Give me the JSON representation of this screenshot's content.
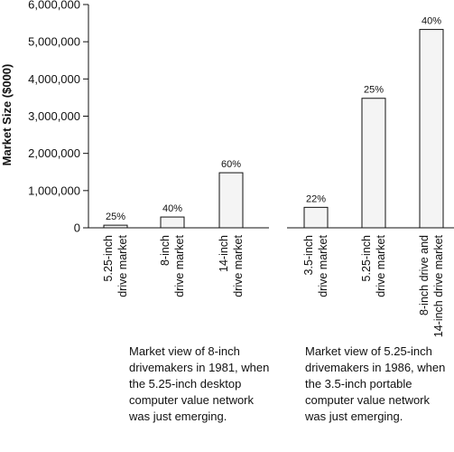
{
  "chart_data": {
    "type": "bar",
    "title": "",
    "xlabel": "",
    "ylabel": "Market Size ($000)",
    "ylim": [
      0,
      6000000
    ],
    "yticks": [
      "0",
      "1,000,000",
      "2,000,000",
      "3,000,000",
      "4,000,000",
      "5,000,000",
      "6,000,000"
    ],
    "grid": false,
    "groups": [
      {
        "categories": [
          [
            "5.25-inch",
            "drive market"
          ],
          [
            "8-inch",
            "drive market"
          ],
          [
            "14-inch",
            "drive market"
          ]
        ],
        "values": [
          70000,
          290000,
          1480000
        ],
        "labels": [
          "25%",
          "40%",
          "60%"
        ],
        "caption": [
          "Market view of 8-inch",
          "drivemakers in 1981, when",
          "the 5.25-inch desktop",
          "computer value network",
          "was just emerging."
        ]
      },
      {
        "categories": [
          [
            "3.5-inch",
            "drive market"
          ],
          [
            "5.25-inch",
            "drive market"
          ],
          [
            "8-inch drive and",
            "14-inch drive market"
          ]
        ],
        "values": [
          550000,
          3480000,
          5330000
        ],
        "labels": [
          "22%",
          "25%",
          "40%"
        ],
        "caption": [
          "Market view of 5.25-inch",
          "drivemakers in 1986, when",
          "the 3.5-inch portable",
          "computer value network",
          "was just emerging."
        ]
      }
    ]
  }
}
